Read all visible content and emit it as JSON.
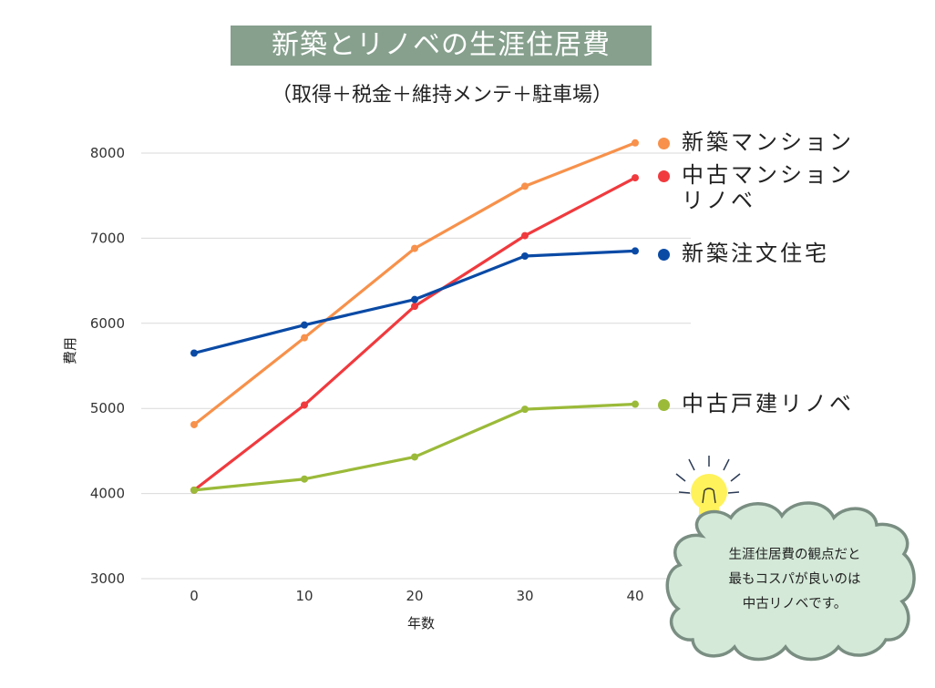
{
  "header": {
    "title": "新築とリノベの生涯住居費",
    "subtitle": "（取得＋税金＋維持メンテ＋駐車場）"
  },
  "chart_data": {
    "type": "line",
    "xlabel": "年数",
    "ylabel": "費用",
    "x": [
      0,
      10,
      20,
      30,
      40
    ],
    "xticks": [
      "0",
      "10",
      "20",
      "30",
      "40"
    ],
    "yticks": [
      "3000",
      "4000",
      "5000",
      "6000",
      "7000",
      "8000"
    ],
    "ylim": [
      3000,
      8000
    ],
    "grid": true,
    "series": [
      {
        "name": "新築マンション",
        "color": "#f7914b",
        "values": [
          4810,
          5830,
          6880,
          7610,
          8120
        ]
      },
      {
        "name": "中古マンション\nリノベ",
        "color": "#f03a3e",
        "values": [
          4040,
          5040,
          6200,
          7030,
          7710
        ]
      },
      {
        "name": "新築注文住宅",
        "color": "#0a4aa5",
        "values": [
          5650,
          5980,
          6280,
          6790,
          6850
        ]
      },
      {
        "name": "中古戸建リノベ",
        "color": "#9bba39",
        "values": [
          4040,
          4170,
          4430,
          4990,
          5050
        ]
      }
    ]
  },
  "note": {
    "text": "生涯住居費の観点だと\n最もコスパが良いのは\n中古リノベです。",
    "bubble_color": "#d4e9d8",
    "border_color": "#7a8e82"
  }
}
